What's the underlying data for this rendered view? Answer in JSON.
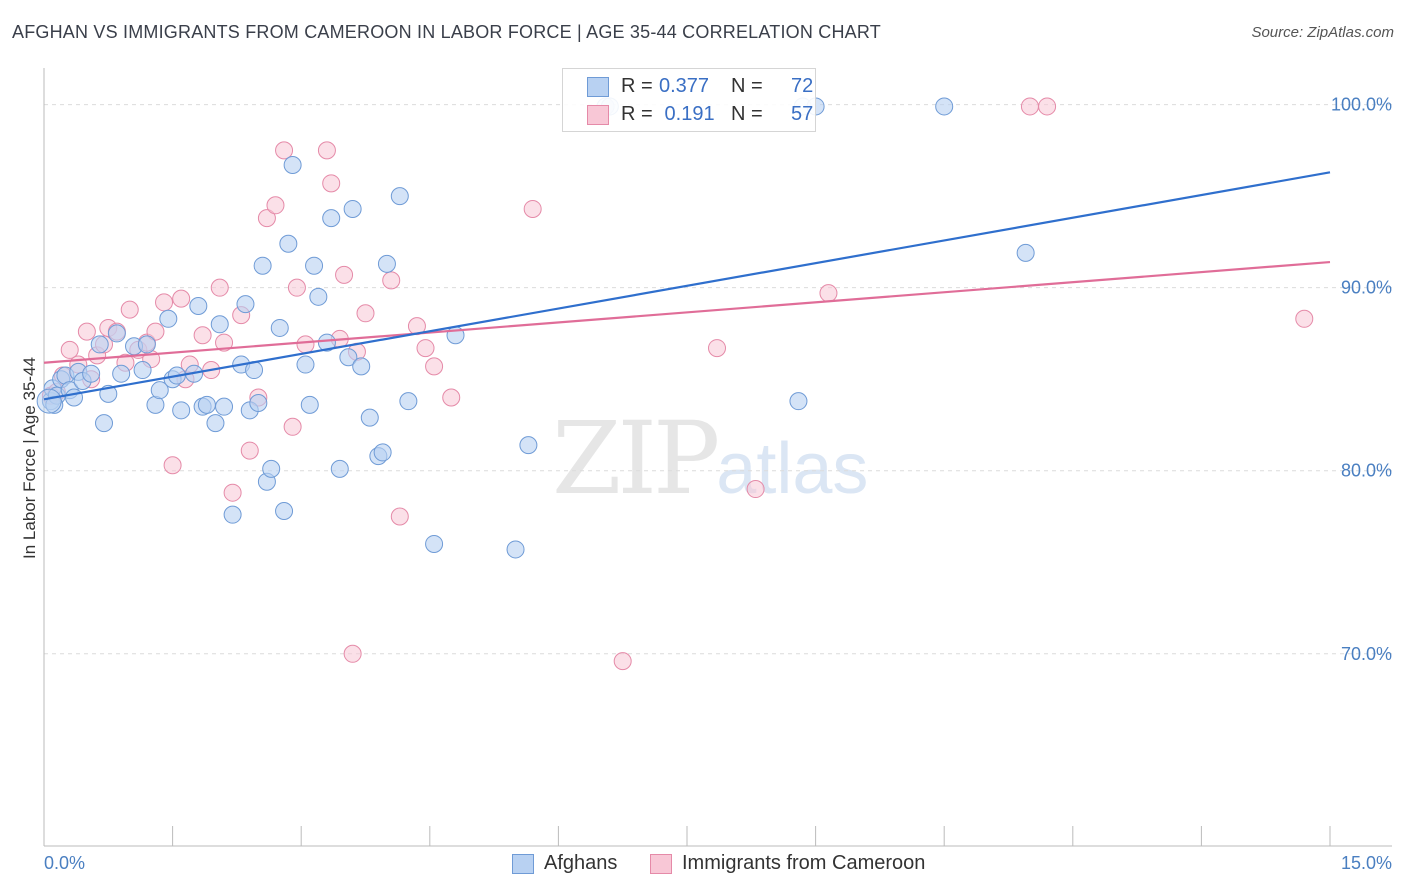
{
  "header": {
    "title": "AFGHAN VS IMMIGRANTS FROM CAMEROON IN LABOR FORCE | AGE 35-44 CORRELATION CHART",
    "source": "Source: ZipAtlas.com"
  },
  "watermark": {
    "zip": "ZIP",
    "atlas": "atlas"
  },
  "legend": {
    "rows": [
      {
        "r_label": "R =",
        "r_value": "0.377",
        "n_label": "N =",
        "n_value": "72"
      },
      {
        "r_label": "R =",
        "r_value": " 0.191",
        "n_label": "N =",
        "n_value": "57"
      }
    ]
  },
  "bottom_legend": {
    "series1": "Afghans",
    "series2": "Immigrants from Cameroon"
  },
  "colors": {
    "blue_fill": "#b8d1f2",
    "blue_stroke": "#6f9bd6",
    "blue_line": "#2f6fcd",
    "pink_fill": "#f8c7d6",
    "pink_stroke": "#e58aa8",
    "pink_line": "#e06d98",
    "grid": "#dcdcdc",
    "tick_text": "#4a7fc1"
  },
  "chart_data": {
    "type": "scatter",
    "title": "AFGHAN VS IMMIGRANTS FROM CAMEROON IN LABOR FORCE | AGE 35-44 CORRELATION CHART",
    "xlabel": "",
    "ylabel": "In Labor Force | Age 35-44",
    "xlim": [
      0,
      15
    ],
    "ylim": [
      59.5,
      102
    ],
    "x_tick_labels": [
      {
        "value": 0,
        "label": "0.0%"
      },
      {
        "value": 15,
        "label": "15.0%"
      }
    ],
    "y_tick_labels": [
      {
        "value": 100,
        "label": "100.0%"
      },
      {
        "value": 90,
        "label": "90.0%"
      },
      {
        "value": 80,
        "label": "80.0%"
      },
      {
        "value": 70,
        "label": "70.0%"
      }
    ],
    "grid": true,
    "legend_position": "top-center",
    "series": [
      {
        "name": "Afghans",
        "color": "#6f9bd6",
        "trend": {
          "x": [
            0,
            15
          ],
          "y": [
            83.9,
            96.3
          ]
        },
        "points": [
          [
            0.08,
            83.8
          ],
          [
            0.1,
            84.5
          ],
          [
            0.15,
            84.1
          ],
          [
            0.2,
            85.0
          ],
          [
            0.25,
            85.2
          ],
          [
            0.3,
            84.4
          ],
          [
            0.4,
            85.4
          ],
          [
            0.45,
            84.9
          ],
          [
            0.55,
            85.3
          ],
          [
            0.65,
            86.9
          ],
          [
            0.7,
            82.6
          ],
          [
            0.75,
            84.2
          ],
          [
            0.85,
            87.5
          ],
          [
            0.9,
            85.3
          ],
          [
            1.05,
            86.8
          ],
          [
            1.15,
            85.5
          ],
          [
            1.2,
            86.9
          ],
          [
            1.3,
            83.6
          ],
          [
            1.35,
            84.4
          ],
          [
            1.45,
            88.3
          ],
          [
            1.5,
            85.0
          ],
          [
            1.55,
            85.2
          ],
          [
            1.6,
            83.3
          ],
          [
            1.75,
            85.3
          ],
          [
            1.8,
            89.0
          ],
          [
            1.85,
            83.5
          ],
          [
            1.9,
            83.6
          ],
          [
            2.0,
            82.6
          ],
          [
            2.05,
            88.0
          ],
          [
            2.1,
            83.5
          ],
          [
            2.2,
            77.6
          ],
          [
            2.3,
            85.8
          ],
          [
            2.35,
            89.1
          ],
          [
            2.4,
            83.3
          ],
          [
            2.45,
            85.5
          ],
          [
            2.5,
            83.7
          ],
          [
            2.55,
            91.2
          ],
          [
            2.6,
            79.4
          ],
          [
            2.65,
            80.1
          ],
          [
            2.75,
            87.8
          ],
          [
            2.8,
            77.8
          ],
          [
            2.85,
            92.4
          ],
          [
            2.9,
            96.7
          ],
          [
            3.05,
            85.8
          ],
          [
            3.1,
            83.6
          ],
          [
            3.15,
            91.2
          ],
          [
            3.2,
            89.5
          ],
          [
            3.3,
            87.0
          ],
          [
            3.35,
            93.8
          ],
          [
            3.45,
            80.1
          ],
          [
            3.55,
            86.2
          ],
          [
            3.6,
            94.3
          ],
          [
            3.7,
            85.7
          ],
          [
            3.8,
            82.9
          ],
          [
            3.9,
            80.8
          ],
          [
            3.95,
            81.0
          ],
          [
            4.0,
            91.3
          ],
          [
            4.15,
            95.0
          ],
          [
            4.25,
            83.8
          ],
          [
            4.55,
            76.0
          ],
          [
            4.8,
            87.4
          ],
          [
            5.5,
            75.7
          ],
          [
            5.65,
            81.4
          ],
          [
            6.55,
            99.9
          ],
          [
            6.6,
            99.9
          ],
          [
            8.8,
            83.8
          ],
          [
            8.85,
            99.9
          ],
          [
            9.0,
            99.9
          ],
          [
            10.5,
            99.9
          ],
          [
            11.45,
            91.9
          ],
          [
            0.12,
            83.6
          ],
          [
            0.35,
            84.0
          ]
        ]
      },
      {
        "name": "Immigrants from Cameroon",
        "color": "#e58aa8",
        "trend": {
          "x": [
            0,
            15
          ],
          "y": [
            85.9,
            91.4
          ]
        },
        "points": [
          [
            0.08,
            84.1
          ],
          [
            0.15,
            84.3
          ],
          [
            0.22,
            85.2
          ],
          [
            0.3,
            86.6
          ],
          [
            0.4,
            85.8
          ],
          [
            0.5,
            87.6
          ],
          [
            0.55,
            85.0
          ],
          [
            0.62,
            86.3
          ],
          [
            0.7,
            86.9
          ],
          [
            0.75,
            87.8
          ],
          [
            0.85,
            87.6
          ],
          [
            0.95,
            85.9
          ],
          [
            1.0,
            88.8
          ],
          [
            1.1,
            86.6
          ],
          [
            1.2,
            87.0
          ],
          [
            1.25,
            86.1
          ],
          [
            1.3,
            87.6
          ],
          [
            1.4,
            89.2
          ],
          [
            1.5,
            80.3
          ],
          [
            1.6,
            89.4
          ],
          [
            1.65,
            85.0
          ],
          [
            1.7,
            85.8
          ],
          [
            1.85,
            87.4
          ],
          [
            1.95,
            85.5
          ],
          [
            2.05,
            90.0
          ],
          [
            2.1,
            87.0
          ],
          [
            2.2,
            78.8
          ],
          [
            2.3,
            88.5
          ],
          [
            2.4,
            81.1
          ],
          [
            2.5,
            84.0
          ],
          [
            2.6,
            93.8
          ],
          [
            2.7,
            94.5
          ],
          [
            2.8,
            97.5
          ],
          [
            2.9,
            82.4
          ],
          [
            2.95,
            90.0
          ],
          [
            3.05,
            86.9
          ],
          [
            3.3,
            97.5
          ],
          [
            3.35,
            95.7
          ],
          [
            3.45,
            87.2
          ],
          [
            3.5,
            90.7
          ],
          [
            3.6,
            70.0
          ],
          [
            3.65,
            86.5
          ],
          [
            3.75,
            88.6
          ],
          [
            4.05,
            90.4
          ],
          [
            4.15,
            77.5
          ],
          [
            4.35,
            87.9
          ],
          [
            4.45,
            86.7
          ],
          [
            4.55,
            85.7
          ],
          [
            4.75,
            84.0
          ],
          [
            5.7,
            94.3
          ],
          [
            6.75,
            69.6
          ],
          [
            7.85,
            86.7
          ],
          [
            8.3,
            79.0
          ],
          [
            9.15,
            89.7
          ],
          [
            11.5,
            99.9
          ],
          [
            11.7,
            99.9
          ],
          [
            14.7,
            88.3
          ]
        ]
      }
    ]
  }
}
